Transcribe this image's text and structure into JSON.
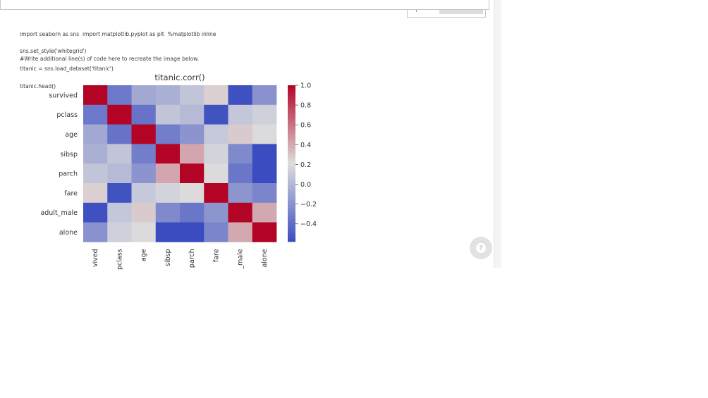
{
  "code_cell": {
    "lines": [
      "import seaborn as sns  import matplotlib.pyplot as plt  %matplotlib inline",
      "sns.set_style('whitegrid')",
      "titanic = sns.load_dataset('titanic')",
      "titanic.head()"
    ],
    "comment": "#Write additional line(s) of code here to recreate the image below."
  },
  "help_button": {
    "label": "?"
  },
  "chart_data": {
    "type": "heatmap",
    "title": "titanic.corr()",
    "row_labels": [
      "survived",
      "pclass",
      "age",
      "sibsp",
      "parch",
      "fare",
      "adult_male",
      "alone"
    ],
    "col_tick_labels": [
      "vived",
      "pclass",
      "age",
      "sibsp",
      "parch",
      "fare",
      "_male",
      "alone"
    ],
    "values": [
      [
        1.0,
        -0.34,
        -0.08,
        -0.04,
        0.08,
        0.26,
        -0.56,
        -0.2
      ],
      [
        -0.34,
        1.0,
        -0.37,
        0.08,
        0.02,
        -0.55,
        0.09,
        0.14
      ],
      [
        -0.08,
        -0.37,
        1.0,
        -0.31,
        -0.19,
        0.1,
        0.28,
        0.2
      ],
      [
        -0.04,
        0.08,
        -0.31,
        1.0,
        0.41,
        0.16,
        -0.25,
        -0.58
      ],
      [
        0.08,
        0.02,
        -0.19,
        0.41,
        1.0,
        0.22,
        -0.35,
        -0.58
      ],
      [
        0.26,
        -0.55,
        0.1,
        0.16,
        0.22,
        1.0,
        -0.18,
        -0.27
      ],
      [
        -0.56,
        0.09,
        0.28,
        -0.25,
        -0.35,
        -0.18,
        1.0,
        0.4
      ],
      [
        -0.2,
        0.14,
        0.2,
        -0.58,
        -0.58,
        -0.27,
        0.4,
        1.0
      ]
    ],
    "vmin": -0.58,
    "vmax": 1.0,
    "colormap": "coolwarm",
    "colorbar_ticks": [
      1.0,
      0.8,
      0.6,
      0.4,
      0.2,
      0.0,
      -0.2,
      -0.4
    ],
    "colorbar_tick_labels": [
      "1.0",
      "0.8",
      "0.6",
      "0.4",
      "0.2",
      "0.0",
      "−0.2",
      "−0.4"
    ],
    "colors": {
      "low": "#3b4cc0",
      "mid": "#dddddd",
      "high": "#b40426"
    }
  }
}
